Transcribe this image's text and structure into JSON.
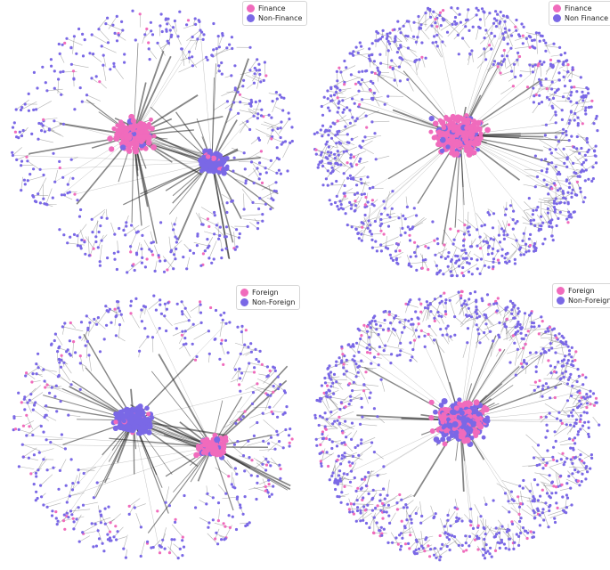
{
  "colors": {
    "pink": "#f06bbc",
    "purple": "#7a68e6",
    "edge": "#555555"
  },
  "panels": [
    {
      "id": "top-left",
      "layout": "two-clusters",
      "legend": [
        {
          "label": "Finance",
          "color": "#f06bbc"
        },
        {
          "label": "Non-Finance",
          "color": "#7a68e6"
        }
      ],
      "clusters": [
        {
          "color": "pink"
        },
        {
          "color": "purple"
        }
      ]
    },
    {
      "id": "top-right",
      "layout": "one-cluster",
      "legend": [
        {
          "label": "Finance",
          "color": "#f06bbc"
        },
        {
          "label": "Non Finance",
          "color": "#7a68e6"
        }
      ],
      "clusters": [
        {
          "color": "pink"
        }
      ]
    },
    {
      "id": "bottom-left",
      "layout": "two-clusters",
      "legend": [
        {
          "label": "Foreign",
          "color": "#f06bbc"
        },
        {
          "label": "Non-Foreign",
          "color": "#7a68e6"
        }
      ],
      "clusters": [
        {
          "color": "purple"
        },
        {
          "color": "pink"
        }
      ]
    },
    {
      "id": "bottom-right",
      "layout": "one-cluster",
      "legend": [
        {
          "label": "Foreign",
          "color": "#f06bbc"
        },
        {
          "label": "Non-Foreign",
          "color": "#7a68e6"
        }
      ],
      "clusters": [
        {
          "color": "mixed"
        }
      ]
    }
  ]
}
